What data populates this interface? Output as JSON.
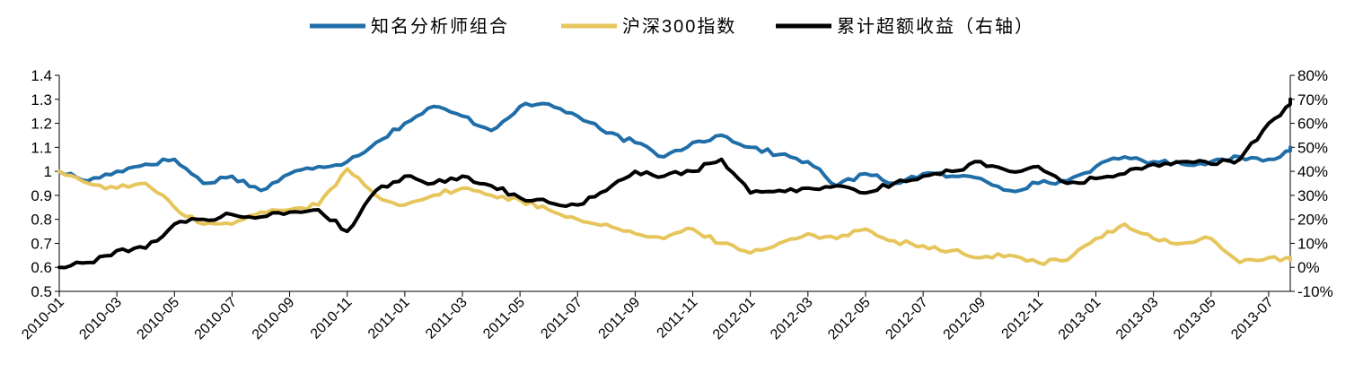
{
  "chart_data": {
    "type": "line",
    "title": "",
    "xlabel": "",
    "ylabel": "",
    "y2label": "",
    "grid": false,
    "legend_position": "top-center",
    "x_tick_labels": [
      "2010-01",
      "2010-03",
      "2010-05",
      "2010-07",
      "2010-09",
      "2010-11",
      "2011-01",
      "2011-03",
      "2011-05",
      "2011-07",
      "2011-09",
      "2011-11",
      "2012-01",
      "2012-03",
      "2012-05",
      "2012-07",
      "2012-09",
      "2012-11",
      "2013-01",
      "2013-03",
      "2013-05",
      "2013-07"
    ],
    "x_range": [
      "2010-01",
      "2013-07"
    ],
    "ylim_left": [
      0.5,
      1.4
    ],
    "ylim_right": [
      -10,
      80
    ],
    "y_left_ticks": [
      "0.5",
      "0.6",
      "0.7",
      "0.8",
      "0.9",
      "1",
      "1.1",
      "1.2",
      "1.3",
      "1.4"
    ],
    "y_right_ticks": [
      "-10%",
      "0%",
      "10%",
      "20%",
      "30%",
      "40%",
      "50%",
      "60%",
      "70%",
      "80%"
    ],
    "x": [
      "2010-01",
      "2010-02",
      "2010-03",
      "2010-04",
      "2010-05",
      "2010-06",
      "2010-07",
      "2010-08",
      "2010-09",
      "2010-10",
      "2010-11",
      "2010-12",
      "2011-01",
      "2011-02",
      "2011-03",
      "2011-04",
      "2011-05",
      "2011-06",
      "2011-07",
      "2011-08",
      "2011-09",
      "2011-10",
      "2011-11",
      "2011-12",
      "2012-01",
      "2012-02",
      "2012-03",
      "2012-04",
      "2012-05",
      "2012-06",
      "2012-07",
      "2012-08",
      "2012-09",
      "2012-10",
      "2012-11",
      "2012-12",
      "2013-01",
      "2013-02",
      "2013-03",
      "2013-04",
      "2013-05",
      "2013-06",
      "2013-07",
      "2013-08"
    ],
    "series": [
      {
        "name": "知名分析师组合",
        "axis": "left",
        "color": "#1f6ea8",
        "values": [
          1.0,
          0.96,
          1.0,
          1.03,
          1.05,
          0.95,
          0.98,
          0.92,
          0.99,
          1.02,
          1.04,
          1.12,
          1.2,
          1.27,
          1.23,
          1.17,
          1.27,
          1.28,
          1.23,
          1.16,
          1.12,
          1.06,
          1.12,
          1.15,
          1.1,
          1.07,
          1.04,
          0.94,
          0.99,
          0.95,
          0.99,
          0.98,
          0.97,
          0.92,
          0.95,
          0.96,
          1.02,
          1.06,
          1.04,
          1.03,
          1.04,
          1.06,
          1.05,
          1.1
        ]
      },
      {
        "name": "沪深300指数",
        "axis": "left",
        "color": "#e6c65c",
        "values": [
          1.0,
          0.95,
          0.93,
          0.95,
          0.85,
          0.78,
          0.78,
          0.83,
          0.84,
          0.86,
          1.01,
          0.9,
          0.86,
          0.9,
          0.93,
          0.9,
          0.88,
          0.84,
          0.8,
          0.78,
          0.74,
          0.72,
          0.76,
          0.7,
          0.66,
          0.7,
          0.74,
          0.72,
          0.76,
          0.71,
          0.69,
          0.67,
          0.64,
          0.65,
          0.62,
          0.63,
          0.72,
          0.78,
          0.72,
          0.7,
          0.72,
          0.62,
          0.64,
          0.63
        ]
      },
      {
        "name": "累计超额收益（右轴）",
        "axis": "right",
        "color": "#000000",
        "values": [
          0,
          2,
          7,
          8,
          18,
          20,
          22,
          21,
          23,
          24,
          15,
          32,
          38,
          35,
          38,
          34,
          29,
          27,
          26,
          32,
          40,
          38,
          40,
          45,
          31,
          32,
          33,
          34,
          31,
          35,
          38,
          40,
          44,
          40,
          42,
          35,
          37,
          39,
          43,
          44,
          43,
          45,
          60,
          70
        ]
      }
    ]
  }
}
